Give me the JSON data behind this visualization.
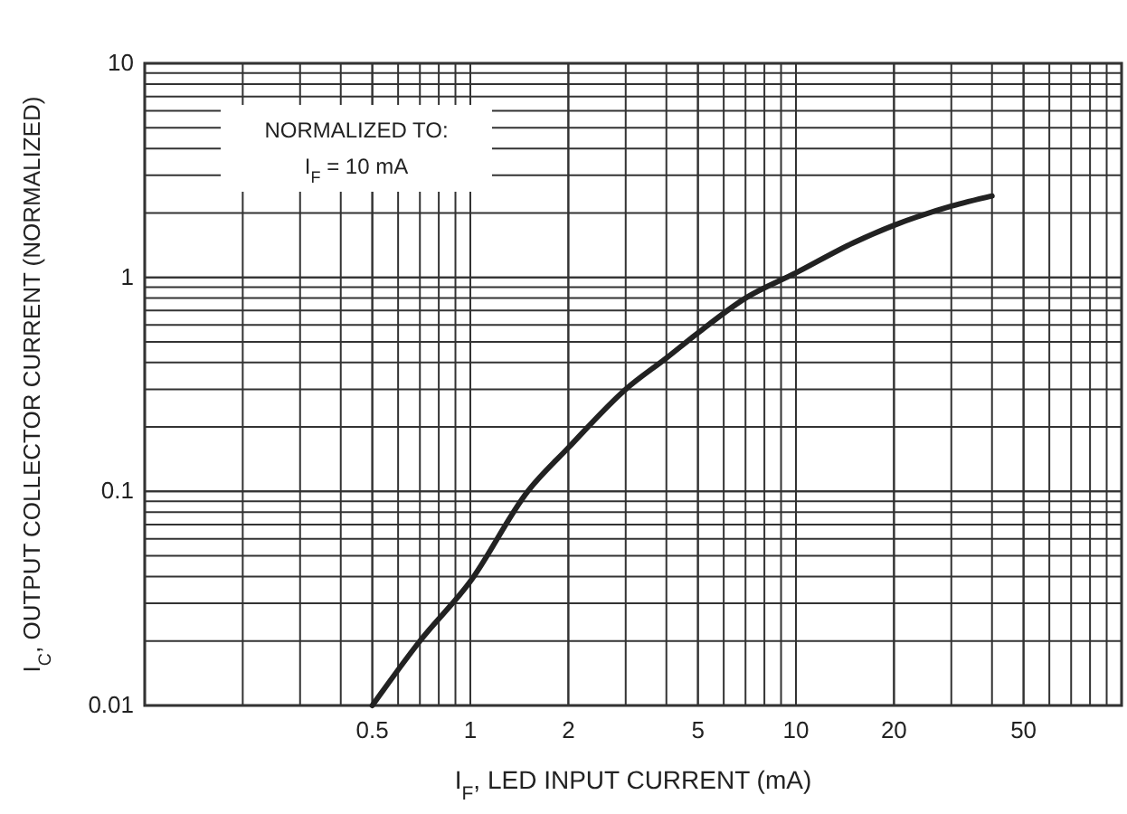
{
  "chart_data": {
    "type": "line",
    "xlabel": "I$_{F}$, LED INPUT CURRENT (mA)",
    "ylabel": "I$_{C}$, OUTPUT COLLECTOR CURRENT (NORMALIZED)",
    "annotations": [
      "NORMALIZED TO:\nI$_{F}$ = 10 mA"
    ],
    "x": [
      0.5,
      0.7,
      1,
      1.5,
      2,
      3,
      4,
      5,
      7,
      10,
      15,
      20,
      30,
      40
    ],
    "series": [
      {
        "color": "#222222",
        "values": [
          0.01,
          0.02,
          0.038,
          0.1,
          0.16,
          0.3,
          0.42,
          0.55,
          0.8,
          1.05,
          1.45,
          1.75,
          2.15,
          2.4
        ]
      }
    ],
    "xlim": [
      0.1,
      100
    ],
    "ylim": [
      0.01,
      10
    ],
    "xticks": [
      0.5,
      1,
      2,
      5,
      10,
      20,
      50
    ],
    "yticks": [
      0.01,
      0.1,
      1,
      10
    ],
    "log": "xy",
    "grid": true,
    "marker": "none",
    "line_style": "solid"
  }
}
